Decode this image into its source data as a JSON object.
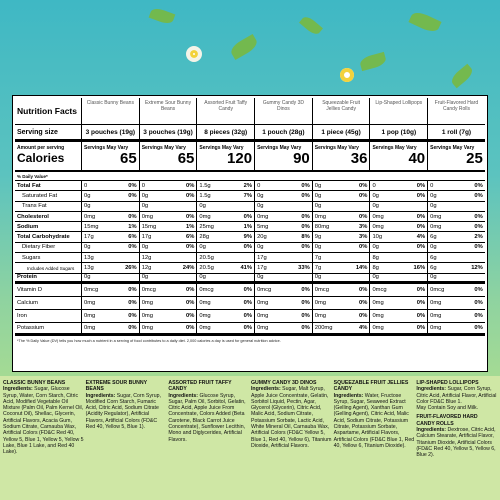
{
  "panel": {
    "title": "Nutrition Facts",
    "products": [
      "Classic Bunny Beans",
      "Extreme Sour Bunny Beans",
      "Assorted Fruit Taffy Candy",
      "Gummy Candy 3D Dinos",
      "Squeezable Fruit Jellies Candy",
      "Lip-Shaped Lollipops",
      "Fruit-Flavored Hard Candy Rolls"
    ],
    "serving_label": "Serving size",
    "servings": [
      "3 pouches (19g)",
      "3 pouches (19g)",
      "8 pieces (32g)",
      "1 pouch (28g)",
      "1 piece (45g)",
      "1 pop (10g)",
      "1 roll (7g)"
    ],
    "amount_label": "Amount per serving",
    "calories_label": "Calories",
    "servings_note": "Servings May Vary",
    "calories": [
      65,
      65,
      120,
      90,
      36,
      40,
      25
    ],
    "dv_header": "% Daily Value*",
    "nutrients": [
      {
        "name": "Total Fat",
        "bold": true,
        "indent": 0,
        "cells": [
          [
            "0",
            "0%"
          ],
          [
            "0",
            "0%"
          ],
          [
            "1.5g",
            "2%"
          ],
          [
            "0",
            "0%"
          ],
          [
            "0g",
            "0%"
          ],
          [
            "0",
            "0%"
          ],
          [
            "0",
            "0%"
          ]
        ]
      },
      {
        "name": "Saturated Fat",
        "bold": false,
        "indent": 1,
        "cells": [
          [
            "0g",
            "0%"
          ],
          [
            "0g",
            "0%"
          ],
          [
            "1.5g",
            "7%"
          ],
          [
            "0g",
            "0%"
          ],
          [
            "0g",
            "0%"
          ],
          [
            "0g",
            "0%"
          ],
          [
            "0g",
            "0%"
          ]
        ]
      },
      {
        "name": "Trans Fat",
        "bold": false,
        "indent": 1,
        "cells": [
          [
            "0g"
          ],
          [
            "0g"
          ],
          [
            "0g"
          ],
          [
            "0g"
          ],
          [
            "0g"
          ],
          [
            "0g"
          ],
          [
            "0g"
          ]
        ]
      },
      {
        "name": "Cholesterol",
        "bold": true,
        "indent": 0,
        "cells": [
          [
            "0mg",
            "0%"
          ],
          [
            "0mg",
            "0%"
          ],
          [
            "0mg",
            "0%"
          ],
          [
            "0mg",
            "0%"
          ],
          [
            "0mg",
            "0%"
          ],
          [
            "0mg",
            "0%"
          ],
          [
            "0mg",
            "0%"
          ]
        ]
      },
      {
        "name": "Sodium",
        "bold": true,
        "indent": 0,
        "cells": [
          [
            "15mg",
            "1%"
          ],
          [
            "15mg",
            "1%"
          ],
          [
            "25mg",
            "1%"
          ],
          [
            "5mg",
            "0%"
          ],
          [
            "80mg",
            "3%"
          ],
          [
            "0mg",
            "0%"
          ],
          [
            "0mg",
            "0%"
          ]
        ]
      },
      {
        "name": "Total Carbohydrate",
        "bold": true,
        "indent": 0,
        "cells": [
          [
            "17g",
            "6%"
          ],
          [
            "17g",
            "6%"
          ],
          [
            "28g",
            "9%"
          ],
          [
            "20g",
            "8%"
          ],
          [
            "9g",
            "3%"
          ],
          [
            "10g",
            "4%"
          ],
          [
            "6g",
            "2%"
          ]
        ]
      },
      {
        "name": "Dietary Fiber",
        "bold": false,
        "indent": 1,
        "cells": [
          [
            "0g",
            "0%"
          ],
          [
            "0g",
            "0%"
          ],
          [
            "0g",
            "0%"
          ],
          [
            "0g",
            "0%"
          ],
          [
            "0g",
            "0%"
          ],
          [
            "0g",
            "0%"
          ],
          [
            "0g",
            "0%"
          ]
        ]
      },
      {
        "name": "Sugars",
        "bold": false,
        "indent": 1,
        "cells": [
          [
            "13g"
          ],
          [
            "12g"
          ],
          [
            "20.5g"
          ],
          [
            "17g"
          ],
          [
            "7g"
          ],
          [
            "8g"
          ],
          [
            "6g"
          ]
        ]
      },
      {
        "name": "Includes Added Sugars",
        "bold": false,
        "indent": 2,
        "cells": [
          [
            "13g",
            "26%"
          ],
          [
            "12g",
            "24%"
          ],
          [
            "20.5g",
            "41%"
          ],
          [
            "17g",
            "33%"
          ],
          [
            "7g",
            "14%"
          ],
          [
            "8g",
            "16%"
          ],
          [
            "6g",
            "12%"
          ]
        ]
      },
      {
        "name": "Protein",
        "bold": true,
        "indent": 0,
        "thick": true,
        "cells": [
          [
            "0g"
          ],
          [
            "0g"
          ],
          [
            "0g"
          ],
          [
            "0g"
          ],
          [
            "0g"
          ],
          [
            "0g"
          ],
          [
            "0g"
          ]
        ]
      },
      {
        "name": "Vitamin D",
        "bold": false,
        "indent": 0,
        "tall": true,
        "cells": [
          [
            "0mcg",
            "0%"
          ],
          [
            "0mcg",
            "0%"
          ],
          [
            "0mcg",
            "0%"
          ],
          [
            "0mcg",
            "0%"
          ],
          [
            "0mcg",
            "0%"
          ],
          [
            "0mcg",
            "0%"
          ],
          [
            "0mcg",
            "0%"
          ]
        ]
      },
      {
        "name": "Calcium",
        "bold": false,
        "indent": 0,
        "tall": true,
        "cells": [
          [
            "0mg",
            "0%"
          ],
          [
            "0mg",
            "0%"
          ],
          [
            "0mg",
            "0%"
          ],
          [
            "0mg",
            "0%"
          ],
          [
            "0mg",
            "0%"
          ],
          [
            "0mg",
            "0%"
          ],
          [
            "0mg",
            "0%"
          ]
        ]
      },
      {
        "name": "Iron",
        "bold": false,
        "indent": 0,
        "tall": true,
        "cells": [
          [
            "0mg",
            "0%"
          ],
          [
            "0mg",
            "0%"
          ],
          [
            "0mg",
            "0%"
          ],
          [
            "0mg",
            "0%"
          ],
          [
            "0mg",
            "0%"
          ],
          [
            "0mg",
            "0%"
          ],
          [
            "0mg",
            "0%"
          ]
        ]
      },
      {
        "name": "Potassium",
        "bold": false,
        "indent": 0,
        "tall": true,
        "cells": [
          [
            "0mg",
            "0%"
          ],
          [
            "0mg",
            "0%"
          ],
          [
            "0mg",
            "0%"
          ],
          [
            "0mg",
            "0%"
          ],
          [
            "200mg",
            "4%"
          ],
          [
            "0mg",
            "0%"
          ],
          [
            "0mg",
            "0%"
          ]
        ]
      }
    ],
    "footnote": "*The % Daily Value (DV) tells you how much a nutrient in a serving of food contributes to a daily diet. 2,000 calories a day is used for general nutrition advice."
  },
  "ingredients": [
    {
      "name": "CLASSIC BUNNY BEANS",
      "label": "Ingredients:",
      "text": "Sugar, Glucose Syrup, Water, Corn Starch, Citric Acid, Modified Vegetable Oil Mixture (Palm Oil, Palm Kernel Oil, Coconut Oil), Shellac, Glycerin, Artificial Flavors, Acacia Gum, Sodium Citrate, Carnauba Wax, Artificial Colors (FD&C Red 40, Yellow 5, Blue 1, Yellow 5, Yellow 5 Lake, Blue 1 Lake, and Red 40 Lake)."
    },
    {
      "name": "EXTREME SOUR BUNNY BEANS",
      "label": "Ingredients:",
      "text": "Sugar, Corn Syrup, Modified Corn Starch, Fumaric Acid, Citric Acid, Sodium Citrate (Acidity Regulator), Artificial Flavors, Artificial Colors (FD&C Red 40, Yellow 5, Blue 1)."
    },
    {
      "name": "ASSORTED FRUIT TAFFY CANDY",
      "label": "Ingredients:",
      "text": "Glucose Syrup, Sugar, Palm Oil, Sorbitol, Gelatin, Citric Acid, Apple Juice From Concentrate, Colors Added (Beta Carotene, Black Carrot Juice Concentrate), Sunflower Lecithin, Mono and Diglycerides, Artificial Flavors."
    },
    {
      "name": "GUMMY CANDY 3D DINOS",
      "label": "Ingredients:",
      "text": "Sugar, Malt Syrup, Apple Juice Concentrate, Gelatin, Sorbitol Liquid, Pectin, Agar, Glycerol (Glycerin), Citric Acid, Malic Acid, Sodium Citrate, Potassium Sorbate, Lactic Acid, White Mineral Oil, Carnauba Wax, Artificial Colors (FD&C Yellow 5, Blue 1, Red 40, Yellow 6), Titanium Dioxide, Artificial Flavors."
    },
    {
      "name": "SQUEEZABLE FRUIT JELLIES CANDY",
      "label": "Ingredients:",
      "text": "Water, Fructose Syrup, Sugar, Seaweed Extract (Gelling Agent), Xanthan Gum (Gelling Agent), Citric Acid, Malic Acid, Sodium Citrate, Potassium Citrate, Potassium Sorbate, Aspartame, Artificial Flavors, Artificial Colors (FD&C Blue 1, Red 40, Yellow 6, Titanium Dioxide)."
    },
    {
      "name": "LIP-SHAPED LOLLIPOPS",
      "label": "Ingredients:",
      "text": "Sugar, Corn Syrup, Citric Acid, Artificial Flavor, Artificial Color FD&C Blue 1.",
      "note": "May Contain Soy and Milk."
    },
    {
      "name": "FRUIT-FLAVORED HARD CANDY ROLLS",
      "label": "Ingredients:",
      "text": "Dextrose, Citric Acid, Calcium Stearate, Artificial Flavor, Titanium Dioxide, Artificial Colors (FD&C Red 40, Yellow 5, Yellow 6, Blue 2)."
    }
  ]
}
